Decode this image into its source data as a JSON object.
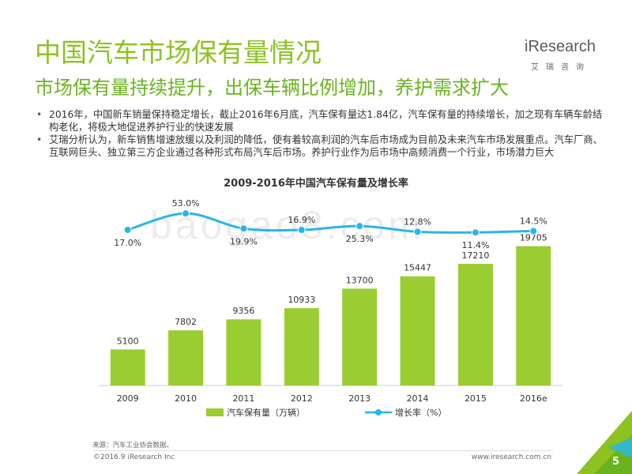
{
  "title": "中国汽车市场保有量情况",
  "subtitle": "市场保有量持续提升，出保车辆比例增加，养护需求扩大",
  "logo": {
    "word": "iResearch",
    "cn": "艾瑞咨询"
  },
  "bullets": [
    "2016年，中国新车销量保持稳定增长，截止2016年6月底，汽车保有量达1.84亿，汽车保有量的持续增长，加之现有车辆车龄结构老化，将极大地促进养护行业的快速发展",
    "艾瑞分析认为，新车销售增速放缓以及利润的降低，使有着较高利润的汽车后市场成为目前及未来汽车市场发展重点。汽车厂商、互联网巨头、独立第三方企业通过各种形式布局汽车后市场。养护行业作为后市场中高频消费一个行业，市场潜力巨大"
  ],
  "watermark": "baogao8.com",
  "chart_data": {
    "type": "bar",
    "title": "2009-2016年中国汽车保有量及增长率",
    "categories": [
      "2009",
      "2010",
      "2011",
      "2012",
      "2013",
      "2014",
      "2015",
      "2016e"
    ],
    "series": [
      {
        "name": "汽车保有量（万辆）",
        "type": "bar",
        "values": [
          5100,
          7802,
          9356,
          10933,
          13700,
          15447,
          17210,
          19705
        ],
        "color": "#9acd32"
      },
      {
        "name": "增长率（%）",
        "type": "line",
        "values": [
          17.0,
          53.0,
          19.9,
          16.9,
          25.3,
          12.8,
          11.4,
          14.5
        ],
        "labels": [
          "17.0%",
          "53.0%",
          "19.9%",
          "16.9%",
          "25.3%",
          "12.8%",
          "11.4%",
          "14.5%"
        ],
        "color": "#29b6e6"
      }
    ],
    "legend_position": "bottom",
    "grid": false
  },
  "source": "来源：汽车工业协会数据。",
  "copyright": "©2016.9 iResearch Inc",
  "website": "www.iresearch.com.cn",
  "page_number": "5",
  "colors": {
    "accent": "#8dc21f",
    "bar": "#9acd32",
    "line": "#29b6e6"
  }
}
